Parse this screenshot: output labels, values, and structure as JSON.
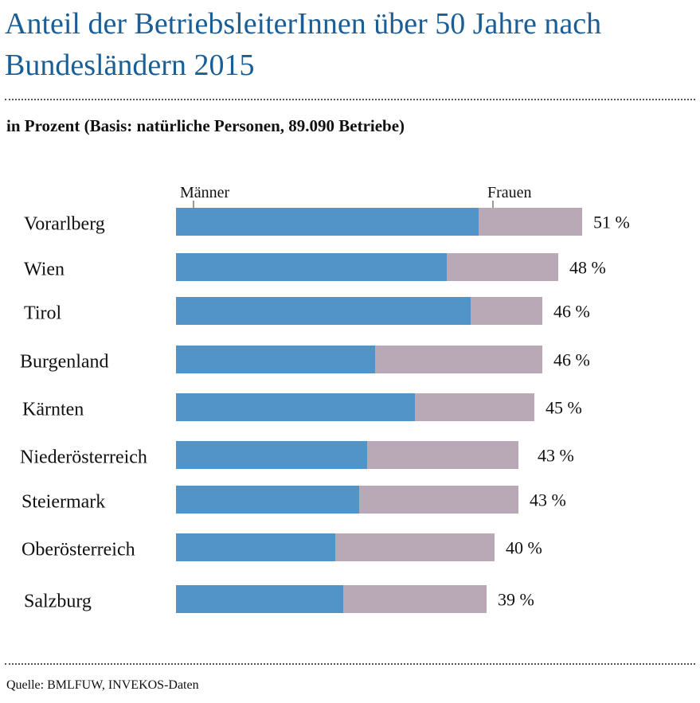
{
  "title": "Anteil der BetriebsleiterInnen über 50 Jahre nach Bundesländern 2015",
  "subtitle": "in Prozent (Basis: natürliche Personen, 89.090 Betriebe)",
  "source": "Quelle: BMLFUW, INVEKOS-Daten",
  "chart_data": {
    "type": "bar",
    "orientation": "horizontal",
    "stacked": true,
    "title": "Anteil der BetriebsleiterInnen über 50 Jahre nach Bundesländern 2015",
    "categories": [
      "Vorarlberg",
      "Wien",
      "Tirol",
      "Burgenland",
      "Kärnten",
      "Niederösterreich",
      "Steiermark",
      "Oberösterreich",
      "Salzburg"
    ],
    "series": [
      {
        "name": "Männer",
        "color": "#5294c8",
        "values": [
          38,
          34,
          37,
          25,
          30,
          24,
          23,
          20,
          21
        ]
      },
      {
        "name": "Frauen",
        "color": "#b9a8b5",
        "values": [
          13,
          14,
          9,
          21,
          15,
          19,
          20,
          20,
          18
        ]
      }
    ],
    "totals": [
      51,
      48,
      46,
      46,
      45,
      43,
      43,
      40,
      39
    ],
    "total_labels": [
      "51 %",
      "48 %",
      "46 %",
      "46 %",
      "45 %",
      "43 %",
      "43 %",
      "40 %",
      "39 %"
    ],
    "xlim": [
      0,
      51
    ],
    "grid": false,
    "legend": "top"
  }
}
